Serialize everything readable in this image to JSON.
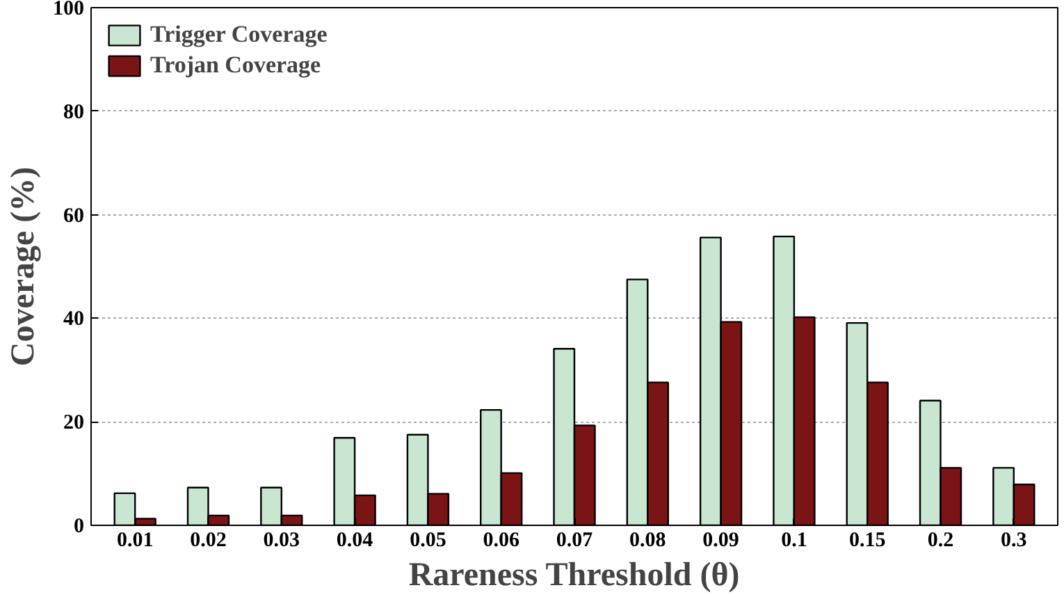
{
  "chart_data": {
    "type": "bar",
    "xlabel": "Rareness Threshold (θ)",
    "ylabel": "Coverage (%)",
    "categories": [
      "0.01",
      "0.02",
      "0.03",
      "0.04",
      "0.05",
      "0.06",
      "0.07",
      "0.08",
      "0.09",
      "0.1",
      "0.15",
      "0.2",
      "0.3"
    ],
    "series": [
      {
        "name": "Trigger Coverage",
        "color": "#c8e6d0",
        "values": [
          6.2,
          7.3,
          7.3,
          16.9,
          17.5,
          22.3,
          34.1,
          47.5,
          55.6,
          55.8,
          39.1,
          24.1,
          11.1
        ]
      },
      {
        "name": "Trojan Coverage",
        "color": "#7b1414",
        "values": [
          1.3,
          1.9,
          1.9,
          5.8,
          6.1,
          10.1,
          19.3,
          27.6,
          39.3,
          40.2,
          27.6,
          11.1,
          7.9
        ]
      }
    ],
    "ylim": [
      0,
      100
    ],
    "yticks": [
      0,
      20,
      40,
      60,
      80,
      100
    ],
    "grid": "y",
    "legend": "top left"
  }
}
